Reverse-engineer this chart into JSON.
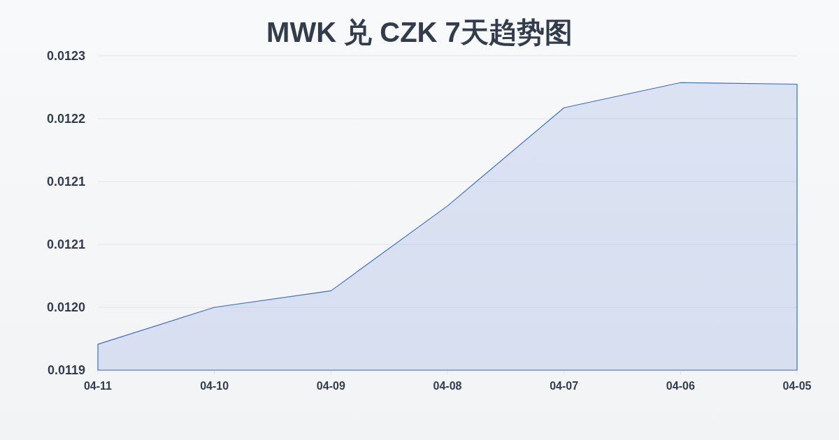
{
  "chart_data": {
    "type": "area",
    "title": "MWK 兑 CZK 7天趋势图",
    "categories": [
      "04-11",
      "04-10",
      "04-09",
      "04-08",
      "04-07",
      "04-06",
      "04-05"
    ],
    "values": [
      0.011933,
      0.01198,
      0.012001,
      0.012109,
      0.012234,
      0.012266,
      0.012264
    ],
    "color": "#3d6cce",
    "ylim": [
      0.0119,
      0.0123
    ],
    "yticks": [
      0.0119,
      {
        "value": 0.01198,
        "label": "0.0120"
      },
      {
        "value": 0.01206,
        "label": "0.0121"
      },
      {
        "value": 0.01214,
        "label": "0.0121"
      },
      {
        "value": 0.01222,
        "label": "0.0122"
      },
      0.0123
    ],
    "grid": "y"
  }
}
